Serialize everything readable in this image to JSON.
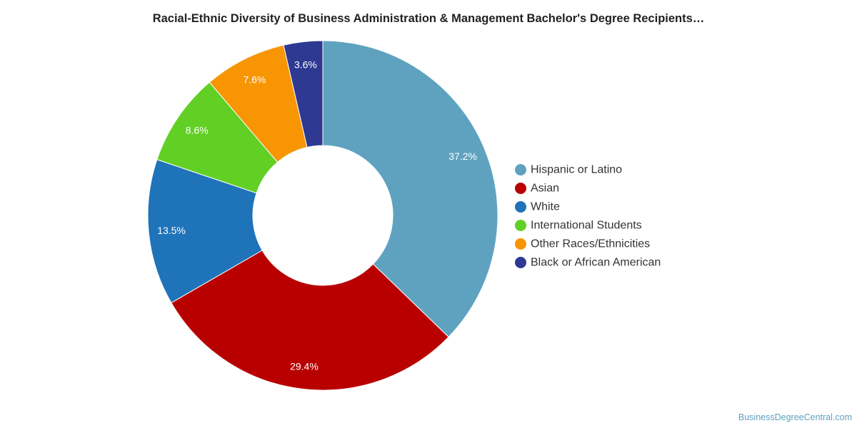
{
  "chart_data": {
    "type": "pie",
    "title": "Racial-Ethnic Diversity of Business Administration & Management Bachelor's Degree Recipients…",
    "donut": true,
    "categories": [
      "Hispanic or Latino",
      "Asian",
      "White",
      "International Students",
      "Other Races/Ethnicities",
      "Black or African American"
    ],
    "values": [
      37.2,
      29.4,
      13.5,
      8.6,
      7.6,
      3.6
    ],
    "labels": [
      "37.2%",
      "29.4%",
      "13.5%",
      "8.6%",
      "7.6%",
      "3.6%"
    ],
    "colors": [
      "#5fa2c0",
      "#b90000",
      "#1f73b9",
      "#62cf25",
      "#f79502",
      "#2e3992"
    ],
    "legend_position": "right"
  },
  "source": "BusinessDegreeCentral.com"
}
